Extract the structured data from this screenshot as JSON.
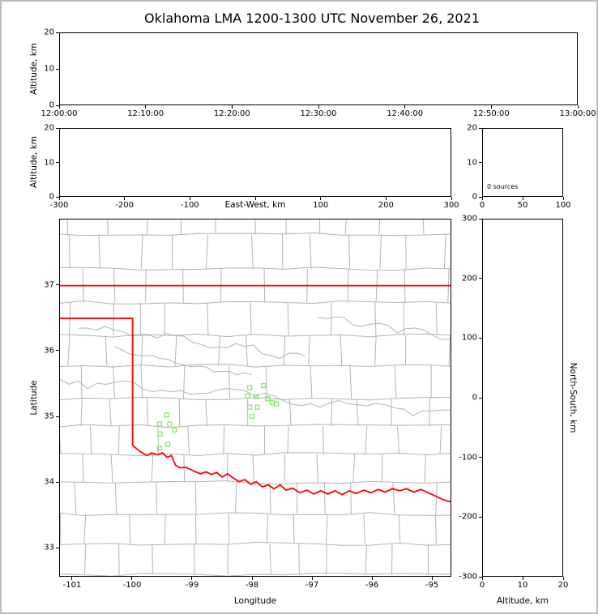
{
  "title": "Oklahoma LMA 1200-1300 UTC November 26, 2021",
  "colors": {
    "state_border": "#ff0000",
    "county_line": "#b3b3b3",
    "station_marker": "#8be86e",
    "axis": "#000000",
    "background": "#ffffff",
    "frame": "#bcbcbc"
  },
  "chart_data": [
    {
      "id": "time_height",
      "type": "scatter",
      "ylabel": "Altitude, km",
      "xticks": [
        "12:00:00",
        "12:10:00",
        "12:20:00",
        "12:30:00",
        "12:40:00",
        "12:50:00",
        "13:00:00"
      ],
      "yticks": [
        20,
        10,
        0
      ],
      "ylim": [
        0,
        20
      ],
      "points": []
    },
    {
      "id": "ew_height",
      "type": "scatter",
      "xlabel": "East-West, km",
      "ylabel": "Altitude, km",
      "xticks": [
        -300,
        -200,
        -100,
        100,
        200,
        300
      ],
      "xlim": [
        -300,
        300
      ],
      "yticks": [
        20,
        10,
        0
      ],
      "ylim": [
        0,
        20
      ],
      "points": []
    },
    {
      "id": "altitude_histogram",
      "type": "histogram",
      "annotation": "0 sources",
      "xticks": [
        0,
        50,
        100
      ],
      "xlim": [
        0,
        100
      ],
      "yticks": [
        20,
        10,
        0
      ],
      "ylim": [
        0,
        20
      ],
      "values": []
    },
    {
      "id": "plan_view_map",
      "type": "scatter",
      "xlabel": "Longitude",
      "ylabel": "Latitude",
      "xticks": [
        -101,
        -100,
        -99,
        -98,
        -97,
        -96,
        -95
      ],
      "xlim": [
        -101.216,
        -94.676
      ],
      "yticks": [
        37,
        36,
        35,
        34,
        33
      ],
      "ylim": [
        32.556,
        38.012
      ],
      "points": [],
      "stations_lon_lat": [
        [
          -99.43,
          35.02
        ],
        [
          -99.55,
          34.88
        ],
        [
          -99.38,
          34.88
        ],
        [
          -99.3,
          34.79
        ],
        [
          -99.54,
          34.73
        ],
        [
          -99.41,
          34.57
        ],
        [
          -99.55,
          34.51
        ],
        [
          -98.04,
          35.44
        ],
        [
          -97.81,
          35.47
        ],
        [
          -98.08,
          35.31
        ],
        [
          -97.93,
          35.3
        ],
        [
          -97.74,
          35.27
        ],
        [
          -97.66,
          35.21
        ],
        [
          -98.04,
          35.14
        ],
        [
          -97.91,
          35.14
        ],
        [
          -97.59,
          35.19
        ],
        [
          -98.0,
          35.0
        ]
      ],
      "state_border_polylines": [
        [
          [
            -101.216,
            37.0
          ],
          [
            -94.676,
            37.0
          ]
        ],
        [
          [
            -101.216,
            36.5
          ],
          [
            -100.0,
            36.5
          ],
          [
            -100.0,
            34.56
          ],
          [
            -99.93,
            34.5
          ],
          [
            -99.84,
            34.44
          ],
          [
            -99.76,
            34.4
          ],
          [
            -99.68,
            34.44
          ],
          [
            -99.58,
            34.41
          ],
          [
            -99.5,
            34.44
          ],
          [
            -99.42,
            34.37
          ],
          [
            -99.35,
            34.4
          ],
          [
            -99.28,
            34.25
          ],
          [
            -99.2,
            34.21
          ],
          [
            -99.12,
            34.22
          ],
          [
            -99.04,
            34.19
          ],
          [
            -98.95,
            34.15
          ],
          [
            -98.86,
            34.12
          ],
          [
            -98.77,
            34.15
          ],
          [
            -98.68,
            34.11
          ],
          [
            -98.59,
            34.14
          ],
          [
            -98.5,
            34.07
          ],
          [
            -98.41,
            34.12
          ],
          [
            -98.32,
            34.06
          ],
          [
            -98.22,
            34.0
          ],
          [
            -98.12,
            34.03
          ],
          [
            -98.02,
            33.96
          ],
          [
            -97.93,
            34.0
          ],
          [
            -97.83,
            33.92
          ],
          [
            -97.73,
            33.95
          ],
          [
            -97.63,
            33.89
          ],
          [
            -97.53,
            33.95
          ],
          [
            -97.43,
            33.87
          ],
          [
            -97.32,
            33.9
          ],
          [
            -97.2,
            33.83
          ],
          [
            -97.08,
            33.87
          ],
          [
            -96.97,
            33.81
          ],
          [
            -96.85,
            33.86
          ],
          [
            -96.73,
            33.81
          ],
          [
            -96.61,
            33.86
          ],
          [
            -96.49,
            33.8
          ],
          [
            -96.37,
            33.86
          ],
          [
            -96.25,
            33.82
          ],
          [
            -96.13,
            33.87
          ],
          [
            -96.01,
            33.83
          ],
          [
            -95.89,
            33.88
          ],
          [
            -95.77,
            33.84
          ],
          [
            -95.65,
            33.89
          ],
          [
            -95.53,
            33.86
          ],
          [
            -95.41,
            33.89
          ],
          [
            -95.29,
            33.84
          ],
          [
            -95.17,
            33.88
          ],
          [
            -95.05,
            33.83
          ],
          [
            -94.93,
            33.78
          ],
          [
            -94.82,
            33.73
          ],
          [
            -94.676,
            33.69
          ]
        ]
      ]
    },
    {
      "id": "ns_height",
      "type": "scatter",
      "xlabel": "Altitude, km",
      "ylabel": "North-South, km",
      "xticks": [
        0,
        10,
        20
      ],
      "xlim": [
        0,
        20
      ],
      "yticks": [
        300,
        200,
        100,
        0,
        -100,
        -200,
        -300
      ],
      "ylim": [
        -300,
        300
      ],
      "points": []
    }
  ]
}
